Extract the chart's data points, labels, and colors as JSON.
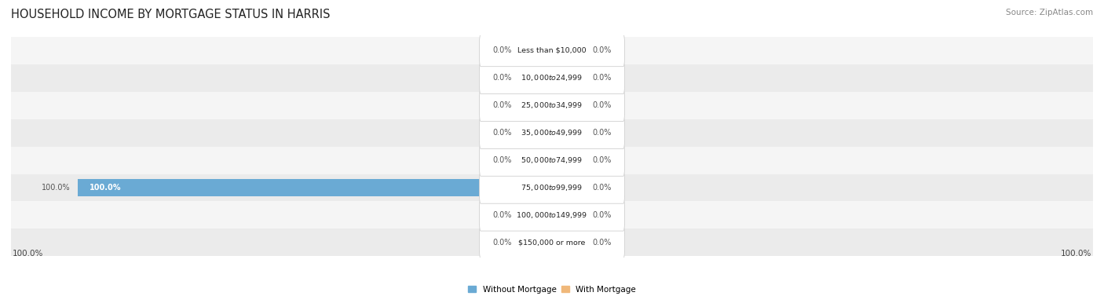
{
  "title": "HOUSEHOLD INCOME BY MORTGAGE STATUS IN HARRIS",
  "source": "Source: ZipAtlas.com",
  "categories": [
    "Less than $10,000",
    "$10,000 to $24,999",
    "$25,000 to $34,999",
    "$35,000 to $49,999",
    "$50,000 to $74,999",
    "$75,000 to $99,999",
    "$100,000 to $149,999",
    "$150,000 or more"
  ],
  "without_mortgage": [
    0.0,
    0.0,
    0.0,
    0.0,
    0.0,
    100.0,
    0.0,
    0.0
  ],
  "with_mortgage": [
    0.0,
    0.0,
    0.0,
    0.0,
    0.0,
    0.0,
    0.0,
    0.0
  ],
  "without_mortgage_color": "#6aaad4",
  "with_mortgage_color": "#f0b87a",
  "stub_without_color": "#aeccec",
  "stub_with_color": "#f5d4ad",
  "row_bg_even": "#f0f0f0",
  "row_bg_odd": "#e8e8e8",
  "axis_max": 100.0,
  "x_left_label": "100.0%",
  "x_right_label": "100.0%",
  "legend_without": "Without Mortgage",
  "legend_with": "With Mortgage",
  "title_fontsize": 10.5,
  "source_fontsize": 7.5,
  "label_box_color": "#f5f5f5",
  "label_box_edge": "#d0d0d0"
}
